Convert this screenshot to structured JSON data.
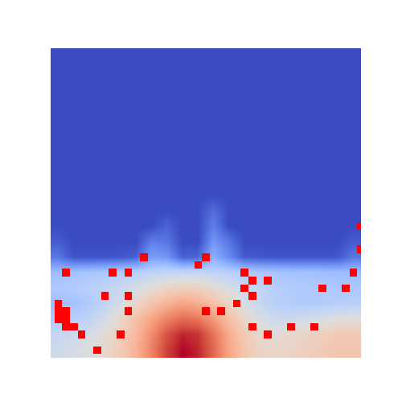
{
  "chart_data": {
    "type": "heatmap",
    "tick_labels": false,
    "color": "#ff0000",
    "cells": [
      [
        0,
        0,
        0,
        0,
        0,
        0,
        0,
        0,
        0,
        0,
        0,
        0,
        0,
        0,
        0,
        0,
        0,
        0,
        0,
        0
      ],
      [
        0,
        0,
        0,
        0,
        0,
        0,
        0,
        0,
        0,
        0,
        0,
        0,
        0,
        0,
        0,
        0,
        0,
        0,
        0,
        0
      ],
      [
        0,
        0,
        0,
        0,
        0,
        0,
        0,
        0,
        0,
        0,
        0,
        0,
        0,
        0,
        0,
        0,
        0,
        0,
        0,
        0
      ],
      [
        0,
        0,
        0,
        0,
        0,
        0,
        0,
        0,
        0,
        0,
        0,
        0,
        0,
        0,
        0,
        0,
        0,
        0,
        0,
        0
      ],
      [
        0,
        0,
        0,
        0,
        0,
        0,
        0,
        0,
        0,
        0,
        0,
        0,
        0,
        0,
        0,
        0,
        0,
        0,
        0,
        0
      ],
      [
        0,
        0,
        0,
        0,
        0,
        0,
        0,
        0,
        0,
        0,
        0,
        0,
        0,
        0,
        0,
        0,
        0,
        0,
        0,
        0
      ],
      [
        0,
        0,
        0,
        0,
        0,
        0,
        0,
        0,
        0,
        0,
        0,
        0,
        0,
        0,
        0,
        0,
        0,
        0,
        0,
        0
      ],
      [
        0,
        0,
        0,
        0,
        0,
        0,
        0,
        0,
        0,
        0,
        0,
        0,
        0,
        0,
        0,
        0,
        0,
        0,
        0,
        0
      ],
      [
        0,
        0,
        0,
        0,
        0,
        0,
        0,
        0,
        0,
        0,
        0,
        0,
        0,
        0,
        0,
        0,
        0,
        0,
        0,
        0
      ],
      [
        0,
        0,
        0,
        0,
        0,
        0,
        0,
        0,
        0,
        0,
        0,
        0,
        0,
        0,
        0,
        0,
        0,
        0,
        0,
        0
      ],
      [
        0,
        0,
        0,
        0,
        0,
        0,
        0,
        0,
        0,
        0,
        0.08,
        0,
        0,
        0,
        0,
        0,
        0,
        0,
        0,
        0
      ],
      [
        0,
        0,
        0,
        0,
        0,
        0,
        0,
        0.06,
        0,
        0,
        0.12,
        0,
        0,
        0,
        0,
        0,
        0,
        0,
        0,
        0
      ],
      [
        0.04,
        0,
        0,
        0,
        0,
        0,
        0.12,
        0.1,
        0,
        0,
        0.18,
        0.1,
        0,
        0,
        0,
        0,
        0,
        0,
        0,
        0.04
      ],
      [
        0.1,
        0.02,
        0.02,
        0.02,
        0.03,
        0.05,
        0.2,
        0.18,
        0.05,
        0.06,
        0.25,
        0.15,
        0.04,
        0.03,
        0.02,
        0.02,
        0.02,
        0.02,
        0.03,
        0.1
      ],
      [
        0.3,
        0.32,
        0.33,
        0.34,
        0.36,
        0.38,
        0.4,
        0.42,
        0.42,
        0.42,
        0.4,
        0.38,
        0.36,
        0.34,
        0.33,
        0.32,
        0.32,
        0.31,
        0.3,
        0.3
      ],
      [
        0.35,
        0.36,
        0.38,
        0.4,
        0.43,
        0.47,
        0.52,
        0.56,
        0.58,
        0.57,
        0.53,
        0.48,
        0.44,
        0.4,
        0.37,
        0.36,
        0.35,
        0.35,
        0.34,
        0.34
      ],
      [
        0.3,
        0.32,
        0.35,
        0.4,
        0.47,
        0.55,
        0.62,
        0.68,
        0.72,
        0.7,
        0.64,
        0.56,
        0.48,
        0.42,
        0.38,
        0.36,
        0.35,
        0.36,
        0.37,
        0.38
      ],
      [
        0.35,
        0.37,
        0.4,
        0.46,
        0.55,
        0.63,
        0.72,
        0.8,
        0.85,
        0.83,
        0.75,
        0.64,
        0.55,
        0.48,
        0.44,
        0.44,
        0.46,
        0.48,
        0.5,
        0.5
      ],
      [
        0.42,
        0.44,
        0.47,
        0.52,
        0.58,
        0.66,
        0.78,
        0.9,
        0.97,
        0.95,
        0.84,
        0.7,
        0.6,
        0.54,
        0.52,
        0.54,
        0.56,
        0.58,
        0.6,
        0.6
      ],
      [
        0.45,
        0.47,
        0.5,
        0.54,
        0.6,
        0.68,
        0.8,
        0.93,
        1.0,
        0.97,
        0.86,
        0.72,
        0.62,
        0.56,
        0.55,
        0.56,
        0.58,
        0.6,
        0.62,
        0.62
      ]
    ],
    "mask": [
      [
        16,
        0
      ],
      [
        16.5,
        0
      ],
      [
        17,
        0
      ],
      [
        17,
        0.5
      ],
      [
        17.5,
        0.5
      ],
      [
        17.5,
        1
      ],
      [
        18,
        1.5
      ],
      [
        16.5,
        0.5
      ],
      [
        14,
        0.5
      ],
      [
        14,
        3.5
      ],
      [
        14,
        4.5
      ],
      [
        13,
        5.5
      ],
      [
        13.5,
        9
      ],
      [
        13,
        9.5
      ],
      [
        14,
        12
      ],
      [
        14.5,
        12.5
      ],
      [
        15,
        12
      ],
      [
        15.5,
        12.5
      ],
      [
        16,
        11.5
      ],
      [
        14.5,
        13.5
      ],
      [
        15,
        18.5
      ],
      [
        14,
        19
      ],
      [
        11,
        19.5
      ],
      [
        12.5,
        19.5
      ],
      [
        15,
        17
      ],
      [
        15.5,
        4.5
      ],
      [
        16.5,
        4.5
      ],
      [
        15.5,
        3
      ],
      [
        16.5,
        9.5
      ],
      [
        17.5,
        12.5
      ],
      [
        18,
        13.5
      ],
      [
        17.5,
        16.5
      ],
      [
        17.5,
        15
      ],
      [
        18,
        4
      ],
      [
        19,
        2.5
      ],
      [
        16.5,
        10.5
      ]
    ]
  }
}
